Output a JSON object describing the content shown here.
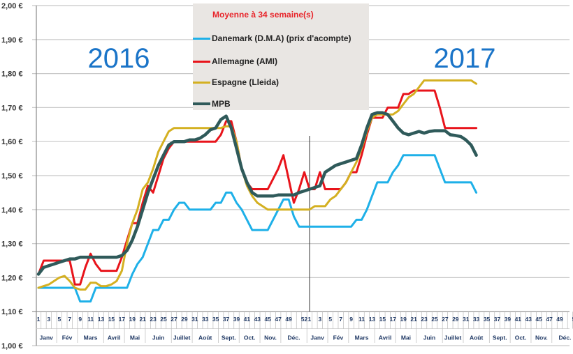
{
  "chart_data": {
    "type": "line",
    "legend_title": "Moyenne à  34 semaine(s)",
    "legend_position": "top-center",
    "year_labels": [
      "2016",
      "2017"
    ],
    "y_ticks": [
      "1,00 €",
      "1,10 €",
      "1,20 €",
      "1,30 €",
      "1,40 €",
      "1,50 €",
      "1,60 €",
      "1,70 €",
      "1,80 €",
      "1,90 €",
      "2,00 €"
    ],
    "ylim": [
      1.0,
      2.0
    ],
    "grid": true,
    "x_week_labels": [
      "1",
      "3",
      "5",
      "7",
      "9",
      "11",
      "13",
      "15",
      "17",
      "19",
      "21",
      "23",
      "25",
      "27",
      "29",
      "31",
      "33",
      "35",
      "37",
      "39",
      "41",
      "43",
      "45",
      "47",
      "49",
      "52"
    ],
    "x_week_label_weeks": [
      1,
      3,
      5,
      7,
      9,
      11,
      13,
      15,
      17,
      19,
      21,
      23,
      25,
      27,
      29,
      31,
      33,
      35,
      37,
      39,
      41,
      43,
      45,
      47,
      49,
      52
    ],
    "months": [
      "Janv",
      "Fév",
      "Mars",
      "Avril",
      "Mai",
      "Juin",
      "Juillet",
      "Août",
      "Sept.",
      "Oct.",
      "Nov.",
      "Déc."
    ],
    "month_end_weeks": [
      4,
      8,
      13,
      17,
      21,
      26,
      30,
      35,
      39,
      43,
      47,
      52
    ],
    "x_note": "Weeks 1-52 of 2016 then weeks 1-33 of 2017",
    "series": [
      {
        "name": "Danemark (D.M.A) (prix d'acompte)",
        "color": "#1eb0e8",
        "values": [
          1.17,
          1.17,
          1.17,
          1.17,
          1.17,
          1.17,
          1.17,
          1.17,
          1.13,
          1.13,
          1.13,
          1.17,
          1.17,
          1.17,
          1.17,
          1.17,
          1.17,
          1.17,
          1.21,
          1.24,
          1.26,
          1.3,
          1.34,
          1.34,
          1.37,
          1.37,
          1.4,
          1.42,
          1.42,
          1.4,
          1.4,
          1.4,
          1.4,
          1.4,
          1.42,
          1.42,
          1.45,
          1.45,
          1.42,
          1.4,
          1.37,
          1.34,
          1.34,
          1.34,
          1.34,
          1.37,
          1.4,
          1.43,
          1.43,
          1.38,
          1.35,
          1.35,
          1.35,
          1.35,
          1.35,
          1.35,
          1.35,
          1.35,
          1.35,
          1.35,
          1.35,
          1.37,
          1.37,
          1.4,
          1.44,
          1.48,
          1.48,
          1.48,
          1.51,
          1.53,
          1.56,
          1.56,
          1.56,
          1.56,
          1.56,
          1.56,
          1.56,
          1.52,
          1.48,
          1.48,
          1.48,
          1.48,
          1.48,
          1.48,
          1.45
        ]
      },
      {
        "name": "Allemagne (AMI)",
        "color": "#e8141b",
        "values": [
          1.21,
          1.25,
          1.25,
          1.25,
          1.25,
          1.25,
          1.25,
          1.18,
          1.18,
          1.23,
          1.27,
          1.24,
          1.22,
          1.22,
          1.22,
          1.22,
          1.26,
          1.31,
          1.36,
          1.36,
          1.42,
          1.47,
          1.45,
          1.5,
          1.55,
          1.58,
          1.6,
          1.6,
          1.6,
          1.6,
          1.6,
          1.6,
          1.6,
          1.6,
          1.6,
          1.62,
          1.66,
          1.66,
          1.6,
          1.52,
          1.48,
          1.46,
          1.46,
          1.46,
          1.46,
          1.49,
          1.52,
          1.56,
          1.49,
          1.42,
          1.46,
          1.51,
          1.46,
          1.46,
          1.51,
          1.46,
          1.46,
          1.46,
          1.46,
          1.48,
          1.51,
          1.51,
          1.56,
          1.62,
          1.67,
          1.67,
          1.67,
          1.7,
          1.7,
          1.7,
          1.74,
          1.74,
          1.75,
          1.75,
          1.75,
          1.75,
          1.75,
          1.7,
          1.64,
          1.64,
          1.64,
          1.64,
          1.64,
          1.64,
          1.64
        ]
      },
      {
        "name": "Espagne (Lleida)",
        "color": "#d4b021",
        "values": [
          1.17,
          1.175,
          1.18,
          1.19,
          1.2,
          1.205,
          1.19,
          1.17,
          1.165,
          1.165,
          1.185,
          1.185,
          1.175,
          1.175,
          1.18,
          1.19,
          1.22,
          1.3,
          1.36,
          1.4,
          1.46,
          1.48,
          1.52,
          1.57,
          1.6,
          1.63,
          1.64,
          1.64,
          1.64,
          1.64,
          1.64,
          1.64,
          1.64,
          1.64,
          1.64,
          1.64,
          1.645,
          1.645,
          1.6,
          1.52,
          1.47,
          1.44,
          1.42,
          1.41,
          1.4,
          1.4,
          1.4,
          1.4,
          1.4,
          1.4,
          1.4,
          1.4,
          1.4,
          1.41,
          1.41,
          1.41,
          1.43,
          1.44,
          1.46,
          1.48,
          1.51,
          1.54,
          1.58,
          1.63,
          1.67,
          1.68,
          1.68,
          1.68,
          1.68,
          1.69,
          1.71,
          1.73,
          1.74,
          1.76,
          1.78,
          1.78,
          1.78,
          1.78,
          1.78,
          1.78,
          1.78,
          1.78,
          1.78,
          1.78,
          1.77
        ]
      },
      {
        "name": "MPB",
        "color": "#2f5a5a",
        "values": [
          1.21,
          1.23,
          1.235,
          1.24,
          1.245,
          1.25,
          1.255,
          1.255,
          1.26,
          1.26,
          1.26,
          1.26,
          1.26,
          1.26,
          1.26,
          1.26,
          1.265,
          1.28,
          1.31,
          1.35,
          1.4,
          1.45,
          1.49,
          1.53,
          1.56,
          1.59,
          1.6,
          1.6,
          1.6,
          1.605,
          1.605,
          1.61,
          1.62,
          1.635,
          1.64,
          1.665,
          1.675,
          1.64,
          1.58,
          1.52,
          1.48,
          1.45,
          1.44,
          1.44,
          1.44,
          1.44,
          1.443,
          1.443,
          1.443,
          1.443,
          1.45,
          1.455,
          1.46,
          1.465,
          1.47,
          1.51,
          1.52,
          1.53,
          1.535,
          1.54,
          1.545,
          1.55,
          1.59,
          1.64,
          1.68,
          1.685,
          1.685,
          1.68,
          1.66,
          1.64,
          1.625,
          1.62,
          1.625,
          1.63,
          1.625,
          1.63,
          1.632,
          1.632,
          1.632,
          1.62,
          1.618,
          1.615,
          1.605,
          1.59,
          1.56
        ]
      }
    ]
  }
}
